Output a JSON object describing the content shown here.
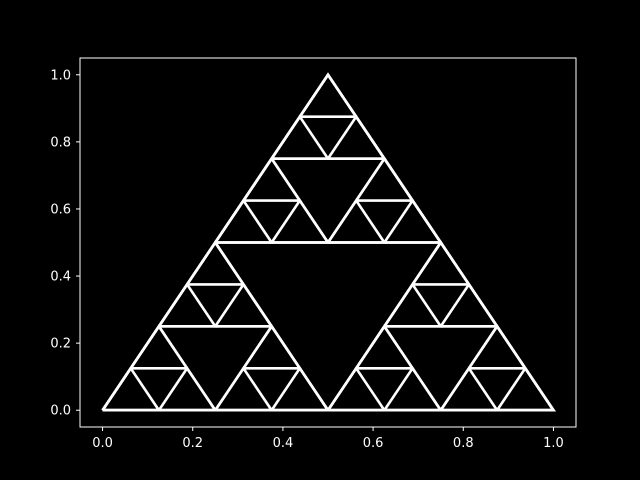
{
  "chart_data": {
    "type": "line",
    "title": "",
    "xlabel": "",
    "ylabel": "",
    "xlim": [
      -0.05,
      1.05
    ],
    "ylim": [
      -0.05,
      1.05
    ],
    "grid": false,
    "x_ticks": [
      {
        "value": 0.0,
        "label": "0.0"
      },
      {
        "value": 0.2,
        "label": "0.2"
      },
      {
        "value": 0.4,
        "label": "0.4"
      },
      {
        "value": 0.6,
        "label": "0.6"
      },
      {
        "value": 0.8,
        "label": "0.8"
      },
      {
        "value": 1.0,
        "label": "1.0"
      }
    ],
    "y_ticks": [
      {
        "value": 0.0,
        "label": "0.0"
      },
      {
        "value": 0.2,
        "label": "0.2"
      },
      {
        "value": 0.4,
        "label": "0.4"
      },
      {
        "value": 0.6,
        "label": "0.6"
      },
      {
        "value": 0.8,
        "label": "0.8"
      },
      {
        "value": 1.0,
        "label": "1.0"
      }
    ],
    "series": [
      {
        "color": "#ffffff",
        "vertices": [
          [
            0.0,
            0.0
          ],
          [
            1.0,
            0.0
          ],
          [
            0.5,
            1.0
          ]
        ],
        "recursion_depth": 3
      }
    ],
    "colors": {
      "background": "#000000",
      "foreground": "#ffffff"
    }
  }
}
